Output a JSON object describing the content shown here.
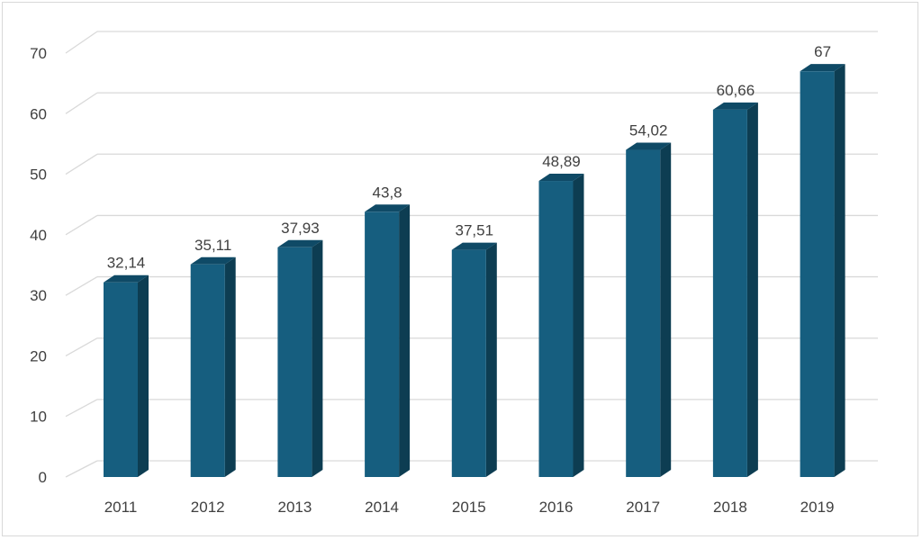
{
  "chart_data": {
    "type": "bar",
    "title": "",
    "xlabel": "",
    "ylabel": "",
    "categories": [
      "2011",
      "2012",
      "2013",
      "2014",
      "2015",
      "2016",
      "2017",
      "2018",
      "2019"
    ],
    "values": [
      32.14,
      35.11,
      37.93,
      43.8,
      37.51,
      48.89,
      54.02,
      60.66,
      67
    ],
    "data_labels": [
      "32,14",
      "35,11",
      "37,93",
      "43,8",
      "37,51",
      "48,89",
      "54,02",
      "60,66",
      "67"
    ],
    "ylim": [
      0,
      70
    ],
    "yticks": [
      0,
      10,
      20,
      30,
      40,
      50,
      60,
      70
    ],
    "grid": true,
    "style": "3d-column",
    "colors": {
      "bar_front": "#165e7f",
      "bar_side": "#0d3d52",
      "bar_top": "#0f4a66",
      "grid": "#d9d9d9",
      "text": "#404040"
    }
  }
}
